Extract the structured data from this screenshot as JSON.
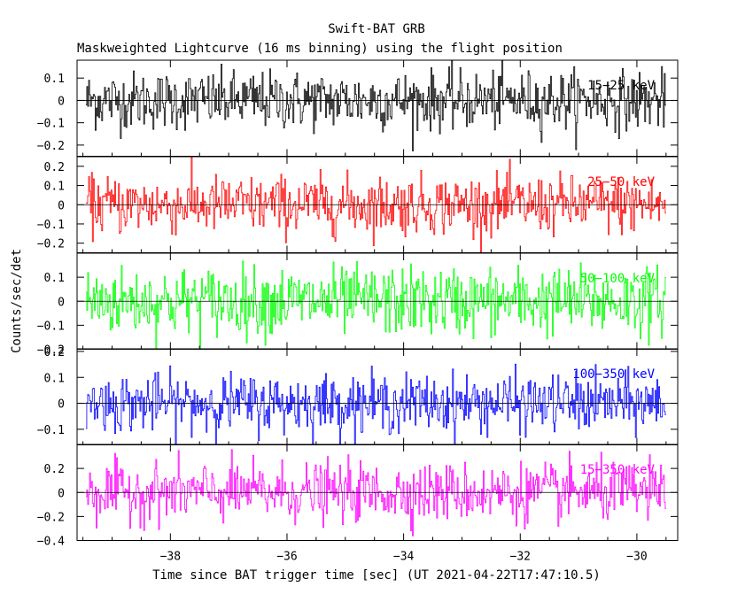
{
  "chart_data": {
    "type": "line",
    "title": "Swift-BAT GRB",
    "subtitle": "Maskweighted Lightcurve (16 ms binning) using the flight position",
    "xlabel": "Time since BAT trigger time [sec] (UT 2021-04-22T17:47:10.5)",
    "ylabel": "Counts/sec/det",
    "xlim": [
      -39.6,
      -29.3
    ],
    "x_range": [
      -39.45,
      -29.5
    ],
    "bin_width": 0.016,
    "x_ticks": [
      -38,
      -36,
      -34,
      -32,
      -30
    ],
    "x_tick_labels": [
      "−38",
      "−36",
      "−34",
      "−32",
      "−30"
    ],
    "grid": false,
    "panels": [
      {
        "label": "15−25 keV",
        "color": "#000000",
        "ylim": [
          -0.25,
          0.18
        ],
        "yticks": [
          0.1,
          0,
          -0.1,
          -0.2
        ],
        "ytick_labels": [
          "0.1",
          "0",
          "−0.1",
          "−0.2"
        ],
        "noise_sigma": 0.065,
        "mean": 0.0
      },
      {
        "label": "25−50 keV",
        "color": "#ff0000",
        "ylim": [
          -0.25,
          0.25
        ],
        "yticks": [
          0.2,
          0.1,
          0,
          -0.1,
          -0.2
        ],
        "ytick_labels": [
          "0.2",
          "0.1",
          "0",
          "−0.1",
          "−0.2"
        ],
        "noise_sigma": 0.075,
        "mean": 0.0
      },
      {
        "label": "50−100 keV",
        "color": "#00ff00",
        "ylim": [
          -0.2,
          0.2
        ],
        "yticks": [
          0.1,
          0,
          -0.1,
          -0.2
        ],
        "ytick_labels": [
          "0.1",
          "0",
          "−0.1",
          "−0.2"
        ],
        "noise_sigma": 0.07,
        "mean": 0.0
      },
      {
        "label": "100−350 keV",
        "color": "#0000ff",
        "ylim": [
          -0.16,
          0.21
        ],
        "yticks": [
          0.2,
          0.1,
          0,
          -0.1
        ],
        "ytick_labels": [
          "0.2",
          "0.1",
          "0",
          "−0.1"
        ],
        "noise_sigma": 0.055,
        "mean": 0.0
      },
      {
        "label": "15−350 keV",
        "color": "#ff00ff",
        "ylim": [
          -0.4,
          0.4
        ],
        "yticks": [
          0.2,
          0,
          -0.2,
          -0.4
        ],
        "ytick_labels": [
          "0.2",
          "0",
          "−0.2",
          "−0.4"
        ],
        "noise_sigma": 0.12,
        "mean": 0.0
      }
    ]
  }
}
